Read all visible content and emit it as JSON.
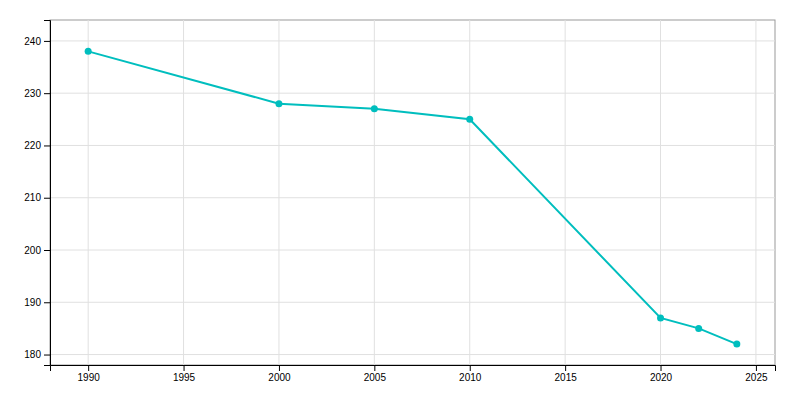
{
  "chart_data": {
    "type": "line",
    "x": [
      1990,
      2000,
      2005,
      2010,
      2020,
      2022,
      2024
    ],
    "values": [
      238,
      228,
      227,
      225,
      187,
      185,
      182
    ],
    "color": "#00BEBE",
    "marker": "circle",
    "xlim": [
      1988,
      2026
    ],
    "ylim": [
      178,
      244
    ],
    "xticks": [
      1990,
      1995,
      2000,
      2005,
      2010,
      2015,
      2020,
      2025
    ],
    "yticks": [
      180,
      190,
      200,
      210,
      220,
      230,
      240
    ],
    "grid": true
  }
}
